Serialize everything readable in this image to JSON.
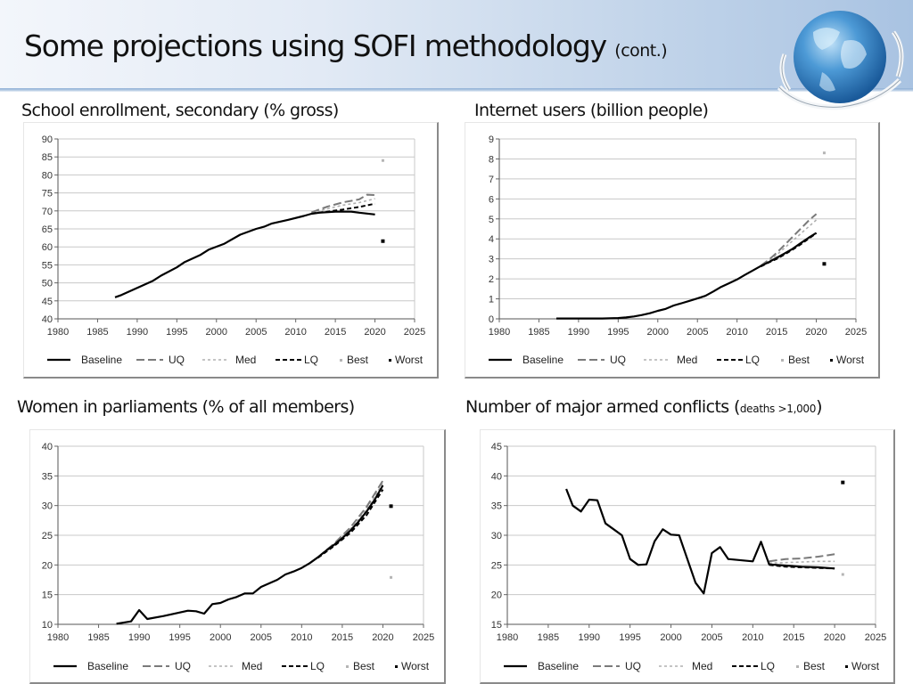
{
  "slide": {
    "title": "Some projections using SOFI methodology",
    "title_suffix": "(cont.)",
    "logo_icon": "globe-laurel-logo"
  },
  "legend_labels": [
    "Baseline",
    "UQ",
    "Med",
    "LQ",
    "Best",
    "Worst"
  ],
  "chart_data": [
    {
      "id": "school",
      "type": "line",
      "title": "School enrollment, secondary (% gross)",
      "title_suffix": "",
      "xlabel": "",
      "ylabel": "",
      "xlim": [
        1980,
        2025
      ],
      "ylim": [
        40,
        90
      ],
      "xticks": [
        1980,
        1985,
        1990,
        1995,
        2000,
        2005,
        2010,
        2015,
        2020,
        2025
      ],
      "yticks": [
        40,
        45,
        50,
        55,
        60,
        65,
        70,
        75,
        80,
        85,
        90
      ],
      "grid": true,
      "legend": "bottom",
      "series": [
        {
          "name": "Baseline",
          "style": "solid",
          "color": "#000000",
          "points": [
            [
              1987.2,
              46
            ],
            [
              1988,
              46.6
            ],
            [
              1990,
              48.6
            ],
            [
              1992,
              50.6
            ],
            [
              1993,
              52
            ],
            [
              1995,
              54.3
            ],
            [
              1996,
              55.8
            ],
            [
              1998,
              57.8
            ],
            [
              1999,
              59.2
            ],
            [
              2001,
              60.9
            ],
            [
              2003,
              63.4
            ],
            [
              2005,
              65
            ],
            [
              2006,
              65.6
            ],
            [
              2007,
              66.5
            ],
            [
              2009,
              67.5
            ],
            [
              2011,
              68.6
            ],
            [
              2012,
              69.2
            ],
            [
              2013,
              69.5
            ],
            [
              2015,
              69.8
            ],
            [
              2017,
              69.8
            ],
            [
              2018,
              69.5
            ],
            [
              2020,
              69
            ]
          ]
        },
        {
          "name": "UQ",
          "style": "longdash",
          "color": "#7a7a7a",
          "points": [
            [
              2012,
              69.6
            ],
            [
              2014,
              71.2
            ],
            [
              2016,
              72.4
            ],
            [
              2018,
              73.2
            ],
            [
              2019,
              74.5
            ],
            [
              2020,
              74.4
            ]
          ]
        },
        {
          "name": "Med",
          "style": "dotted",
          "color": "#b0b0b0",
          "points": [
            [
              2012,
              69.5
            ],
            [
              2014,
              70.6
            ],
            [
              2016,
              71.6
            ],
            [
              2018,
              72.3
            ],
            [
              2020,
              73.4
            ]
          ]
        },
        {
          "name": "LQ",
          "style": "dash",
          "color": "#000000",
          "points": [
            [
              2012,
              69.3
            ],
            [
              2014,
              69.8
            ],
            [
              2016,
              70.4
            ],
            [
              2018,
              71.1
            ],
            [
              2020,
              72
            ]
          ]
        }
      ],
      "best": [
        2021,
        84
      ],
      "worst": [
        2021,
        61.6
      ]
    },
    {
      "id": "internet",
      "type": "line",
      "title": "Internet users (billion people)",
      "title_suffix": "",
      "xlabel": "",
      "ylabel": "",
      "xlim": [
        1980,
        2025
      ],
      "ylim": [
        0,
        9
      ],
      "xticks": [
        1980,
        1985,
        1990,
        1995,
        2000,
        2005,
        2010,
        2015,
        2020,
        2025
      ],
      "yticks": [
        0,
        1,
        2,
        3,
        4,
        5,
        6,
        7,
        8,
        9
      ],
      "grid": true,
      "legend": "bottom",
      "series": [
        {
          "name": "Baseline",
          "style": "solid",
          "color": "#000000",
          "points": [
            [
              1987.2,
              0.02
            ],
            [
              1990,
              0.02
            ],
            [
              1993,
              0.02
            ],
            [
              1995,
              0.04
            ],
            [
              1996,
              0.07
            ],
            [
              1997,
              0.12
            ],
            [
              1998,
              0.19
            ],
            [
              1999,
              0.28
            ],
            [
              2000,
              0.4
            ],
            [
              2001,
              0.5
            ],
            [
              2002,
              0.67
            ],
            [
              2003,
              0.78
            ],
            [
              2004,
              0.9
            ],
            [
              2005,
              1.02
            ],
            [
              2006,
              1.15
            ],
            [
              2007,
              1.37
            ],
            [
              2008,
              1.6
            ],
            [
              2009,
              1.78
            ],
            [
              2010,
              1.97
            ],
            [
              2011,
              2.2
            ],
            [
              2012,
              2.42
            ],
            [
              2013,
              2.64
            ],
            [
              2014,
              2.84
            ],
            [
              2015,
              3.05
            ],
            [
              2016,
              3.27
            ],
            [
              2017,
              3.5
            ],
            [
              2018,
              3.78
            ],
            [
              2019,
              4.05
            ],
            [
              2020,
              4.3
            ]
          ]
        },
        {
          "name": "UQ",
          "style": "longdash",
          "color": "#7a7a7a",
          "points": [
            [
              2013,
              2.66
            ],
            [
              2014,
              2.95
            ],
            [
              2015,
              3.3
            ],
            [
              2016,
              3.7
            ],
            [
              2017,
              4.1
            ],
            [
              2018,
              4.5
            ],
            [
              2019,
              4.9
            ],
            [
              2020,
              5.25
            ]
          ]
        },
        {
          "name": "Med",
          "style": "dotted",
          "color": "#b0b0b0",
          "points": [
            [
              2013,
              2.64
            ],
            [
              2014,
              2.9
            ],
            [
              2015,
              3.2
            ],
            [
              2016,
              3.55
            ],
            [
              2017,
              3.9
            ],
            [
              2018,
              4.25
            ],
            [
              2019,
              4.6
            ],
            [
              2020,
              4.95
            ]
          ]
        },
        {
          "name": "LQ",
          "style": "dash",
          "color": "#000000",
          "points": [
            [
              2013,
              2.62
            ],
            [
              2014,
              2.82
            ],
            [
              2015,
              3.0
            ],
            [
              2016,
              3.22
            ],
            [
              2017,
              3.46
            ],
            [
              2018,
              3.72
            ],
            [
              2019,
              4.0
            ],
            [
              2020,
              4.28
            ]
          ]
        }
      ],
      "best": [
        2021,
        8.3
      ],
      "worst": [
        2021,
        2.75
      ]
    },
    {
      "id": "women",
      "type": "line",
      "title": "Women in parliaments (% of all members)",
      "title_suffix": "",
      "xlabel": "",
      "ylabel": "",
      "xlim": [
        1980,
        2025
      ],
      "ylim": [
        10,
        40
      ],
      "xticks": [
        1980,
        1985,
        1990,
        1995,
        2000,
        2005,
        2010,
        2015,
        2020,
        2025
      ],
      "yticks": [
        10,
        15,
        20,
        25,
        30,
        35,
        40
      ],
      "grid": true,
      "legend": "bottom",
      "series": [
        {
          "name": "Baseline",
          "style": "solid",
          "color": "#000000",
          "points": [
            [
              1987.2,
              10.1
            ],
            [
              1989,
              10.5
            ],
            [
              1990,
              12.4
            ],
            [
              1991,
              10.9
            ],
            [
              1993,
              11.4
            ],
            [
              1995,
              12
            ],
            [
              1996,
              12.3
            ],
            [
              1997,
              12.2
            ],
            [
              1998,
              11.8
            ],
            [
              1999,
              13.4
            ],
            [
              2000,
              13.6
            ],
            [
              2001,
              14.2
            ],
            [
              2002,
              14.6
            ],
            [
              2003,
              15.2
            ],
            [
              2004,
              15.2
            ],
            [
              2005,
              16.3
            ],
            [
              2006,
              16.9
            ],
            [
              2007,
              17.5
            ],
            [
              2008,
              18.4
            ],
            [
              2009,
              18.9
            ],
            [
              2010,
              19.5
            ],
            [
              2011,
              20.3
            ],
            [
              2012,
              21.3
            ],
            [
              2013,
              22.4
            ],
            [
              2014,
              23.4
            ],
            [
              2015,
              24.5
            ],
            [
              2016,
              25.8
            ],
            [
              2017,
              27.3
            ],
            [
              2018,
              29
            ],
            [
              2019,
              31
            ],
            [
              2020,
              33.4
            ]
          ]
        },
        {
          "name": "UQ",
          "style": "longdash",
          "color": "#7a7a7a",
          "points": [
            [
              2012,
              21.3
            ],
            [
              2014,
              23.6
            ],
            [
              2016,
              26.3
            ],
            [
              2018,
              29.8
            ],
            [
              2020,
              34.2
            ]
          ]
        },
        {
          "name": "Med",
          "style": "dotted",
          "color": "#b0b0b0",
          "points": [
            [
              2012,
              21.3
            ],
            [
              2014,
              23.5
            ],
            [
              2016,
              26
            ],
            [
              2018,
              29.4
            ],
            [
              2020,
              33.8
            ]
          ]
        },
        {
          "name": "LQ",
          "style": "dash",
          "color": "#000000",
          "points": [
            [
              2012,
              21.2
            ],
            [
              2014,
              23.2
            ],
            [
              2016,
              25.4
            ],
            [
              2018,
              28.4
            ],
            [
              2020,
              32.7
            ]
          ]
        }
      ],
      "best": [
        2021,
        17.9
      ],
      "worst": [
        2021,
        29.9
      ]
    },
    {
      "id": "conflicts",
      "type": "line",
      "title": "Number of major armed conflicts (",
      "title_suffix": "deaths >1,000",
      "title_close": ")",
      "xlabel": "",
      "ylabel": "",
      "xlim": [
        1980,
        2025
      ],
      "ylim": [
        15,
        45
      ],
      "xticks": [
        1980,
        1985,
        1990,
        1995,
        2000,
        2005,
        2010,
        2015,
        2020,
        2025
      ],
      "yticks": [
        15,
        20,
        25,
        30,
        35,
        40,
        45
      ],
      "grid": true,
      "legend": "bottom",
      "series": [
        {
          "name": "Baseline",
          "style": "solid",
          "color": "#000000",
          "points": [
            [
              1987.2,
              37.8
            ],
            [
              1988,
              35
            ],
            [
              1989,
              34
            ],
            [
              1990,
              36
            ],
            [
              1991,
              35.9
            ],
            [
              1992,
              32
            ],
            [
              1993,
              31
            ],
            [
              1994,
              30
            ],
            [
              1995,
              26
            ],
            [
              1996,
              25
            ],
            [
              1997,
              25.1
            ],
            [
              1998,
              29
            ],
            [
              1999,
              31
            ],
            [
              2000,
              30.1
            ],
            [
              2001,
              30
            ],
            [
              2002,
              26
            ],
            [
              2003,
              22
            ],
            [
              2004,
              20.2
            ],
            [
              2005,
              27
            ],
            [
              2006,
              28
            ],
            [
              2007,
              26
            ],
            [
              2010,
              25.6
            ],
            [
              2011,
              28.9
            ],
            [
              2012,
              25.1
            ],
            [
              2014,
              24.9
            ],
            [
              2016,
              24.7
            ],
            [
              2018,
              24.6
            ],
            [
              2020,
              24.4
            ]
          ]
        },
        {
          "name": "UQ",
          "style": "longdash",
          "color": "#7a7a7a",
          "points": [
            [
              2012,
              25.6
            ],
            [
              2014,
              26
            ],
            [
              2016,
              26.1
            ],
            [
              2018,
              26.4
            ],
            [
              2020,
              26.8
            ]
          ]
        },
        {
          "name": "Med",
          "style": "dotted",
          "color": "#b0b0b0",
          "points": [
            [
              2012,
              25.3
            ],
            [
              2014,
              25.4
            ],
            [
              2016,
              25.5
            ],
            [
              2018,
              25.6
            ],
            [
              2020,
              25.6
            ]
          ]
        },
        {
          "name": "LQ",
          "style": "dash",
          "color": "#000000",
          "points": [
            [
              2012,
              25
            ],
            [
              2014,
              24.7
            ],
            [
              2016,
              24.6
            ],
            [
              2018,
              24.5
            ],
            [
              2020,
              24.4
            ]
          ]
        }
      ],
      "best": [
        2021,
        23.4
      ],
      "worst": [
        2021,
        38.9
      ]
    }
  ]
}
